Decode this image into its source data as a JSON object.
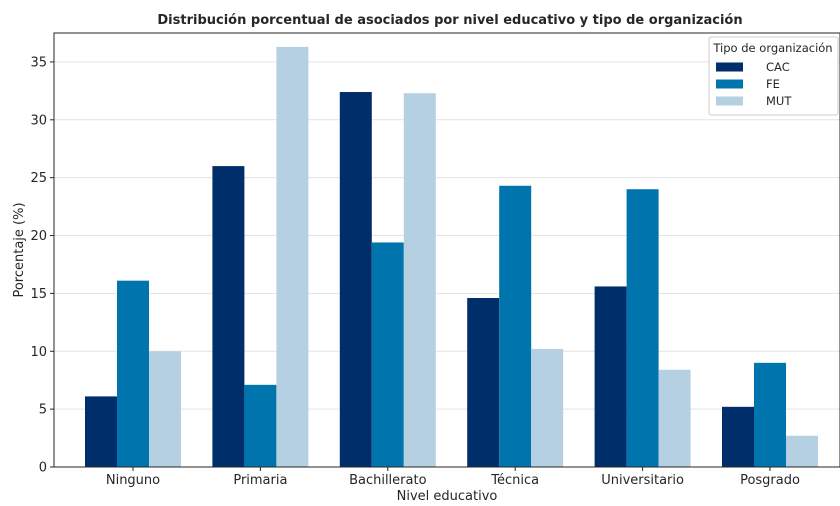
{
  "chart_data": {
    "type": "bar",
    "title": "Distribución porcentual de asociados por nivel educativo y tipo de organización",
    "xlabel": "Nivel educativo",
    "ylabel": "Porcentaje (%)",
    "ylim": [
      0,
      37.5
    ],
    "yticks": [
      0,
      5,
      10,
      15,
      20,
      25,
      30,
      35
    ],
    "grid": true,
    "legend_title": "Tipo de organización",
    "legend_position": "top-right",
    "categories": [
      "Ninguno",
      "Primaria",
      "Bachillerato",
      "Técnica",
      "Universitario",
      "Posgrado"
    ],
    "series": [
      {
        "name": "CAC",
        "color": "#002e6b",
        "values": [
          6.1,
          26.0,
          32.4,
          14.6,
          15.6,
          5.2
        ]
      },
      {
        "name": "FE",
        "color": "#0075ad",
        "values": [
          16.1,
          7.1,
          19.4,
          24.3,
          24.0,
          9.0
        ]
      },
      {
        "name": "MUT",
        "color": "#b5cfe3",
        "values": [
          10.0,
          36.3,
          32.3,
          10.2,
          8.4,
          2.7
        ]
      }
    ]
  }
}
